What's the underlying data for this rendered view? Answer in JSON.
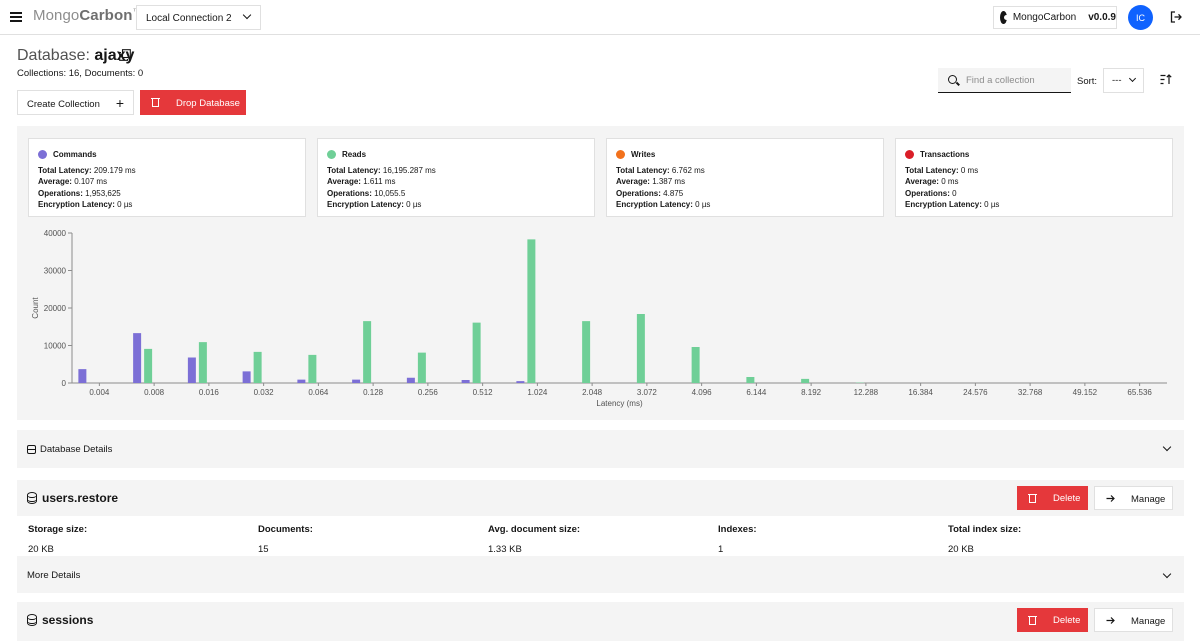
{
  "header": {
    "brand_light": "Mongo",
    "brand_bold": "Carbon",
    "brand_tm": "™",
    "connection": "Local Connection 2",
    "github_label": "MongoCarbon",
    "version": "v0.0.9",
    "avatar_initials": "IC"
  },
  "page": {
    "db_label": "Database:",
    "db_name": "ajaxy",
    "meta": "Collections: 16, Documents: 0",
    "create_collection": "Create Collection",
    "drop_database": "Drop Database",
    "search_placeholder": "Find a collection",
    "sort_label": "Sort:",
    "sort_value": "---"
  },
  "metrics": [
    {
      "title": "Commands",
      "color": "#7c6fd6",
      "total_latency_k": "Total Latency:",
      "total_latency": "209.179 ms",
      "average_k": "Average:",
      "average": "0.107 ms",
      "operations_k": "Operations:",
      "operations": "1,953,625",
      "enc_k": "Encryption Latency:",
      "enc": "0 µs"
    },
    {
      "title": "Reads",
      "color": "#6fcf97",
      "total_latency_k": "Total Latency:",
      "total_latency": "16,195.287 ms",
      "average_k": "Average:",
      "average": "1.611 ms",
      "operations_k": "Operations:",
      "operations": "10,055.5",
      "enc_k": "Encryption Latency:",
      "enc": "0 µs"
    },
    {
      "title": "Writes",
      "color": "#f2711c",
      "total_latency_k": "Total Latency:",
      "total_latency": "6.762 ms",
      "average_k": "Average:",
      "average": "1.387 ms",
      "operations_k": "Operations:",
      "operations": "4.875",
      "enc_k": "Encryption Latency:",
      "enc": "0 µs"
    },
    {
      "title": "Transactions",
      "color": "#da1e28",
      "total_latency_k": "Total Latency:",
      "total_latency": "0 ms",
      "average_k": "Average:",
      "average": "0 ms",
      "operations_k": "Operations:",
      "operations": "0",
      "enc_k": "Encryption Latency:",
      "enc": "0 µs"
    }
  ],
  "chart_data": {
    "type": "bar",
    "xlabel": "Latency (ms)",
    "ylabel": "Count",
    "ylim": [
      0,
      40000
    ],
    "yticks": [
      0,
      10000,
      20000,
      30000,
      40000
    ],
    "categories": [
      "0.004",
      "0.008",
      "0.016",
      "0.032",
      "0.064",
      "0.128",
      "0.256",
      "0.512",
      "1.024",
      "2.048",
      "3.072",
      "4.096",
      "6.144",
      "8.192",
      "12.288",
      "16.384",
      "24.576",
      "32.768",
      "49.152",
      "65.536"
    ],
    "series": [
      {
        "name": "Commands",
        "color": "#7c6fd6",
        "values": [
          3700,
          13300,
          6800,
          3100,
          900,
          900,
          1400,
          800,
          500,
          0,
          0,
          0,
          0,
          0,
          0,
          0,
          0,
          0,
          0,
          0
        ]
      },
      {
        "name": "Reads",
        "color": "#6fcf97",
        "values": [
          0,
          9100,
          10900,
          8300,
          7500,
          16500,
          8100,
          16100,
          38300,
          16500,
          18400,
          9600,
          1600,
          1100,
          100,
          0,
          0,
          0,
          0,
          0
        ]
      }
    ]
  },
  "db_details": {
    "title": "Database Details"
  },
  "collections": [
    {
      "name": "users.restore",
      "delete": "Delete",
      "manage": "Manage",
      "storage_k": "Storage size:",
      "storage": "20 KB",
      "docs_k": "Documents:",
      "docs": "15",
      "avg_k": "Avg. document size:",
      "avg": "1.33 KB",
      "idx_k": "Indexes:",
      "idx": "1",
      "tidx_k": "Total index size:",
      "tidx": "20 KB",
      "more": "More Details"
    },
    {
      "name": "sessions",
      "delete": "Delete",
      "manage": "Manage"
    }
  ]
}
